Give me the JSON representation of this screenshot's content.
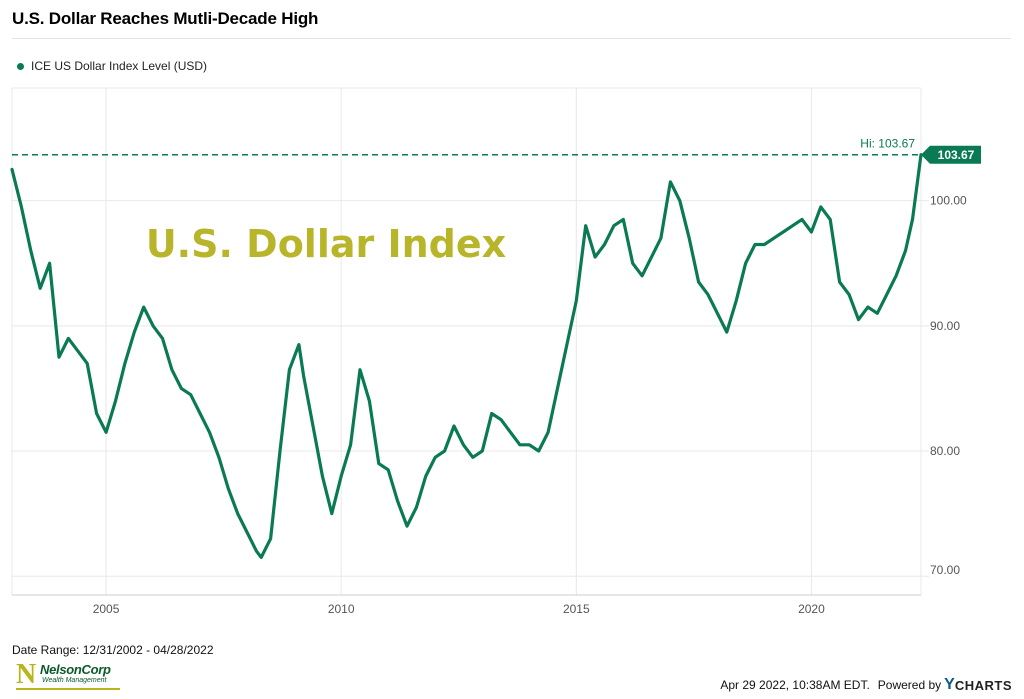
{
  "title": "U.S. Dollar Reaches Mutli-Decade High",
  "legend": {
    "label": "ICE US Dollar Index Level (USD)"
  },
  "overlay_text": "U.S. Dollar Index",
  "footer": {
    "date_range": "Date Range: 12/31/2002 - 04/28/2022",
    "timestamp": "Apr 29 2022, 10:38AM EDT.",
    "powered_by": "Powered by",
    "brand_y": "Y",
    "brand_rest": "CHARTS",
    "logo_name": "NelsonCorp",
    "logo_sub": "Wealth Management",
    "logo_mark": "N"
  },
  "colors": {
    "series": "#0a7a55",
    "overlay": "#b9b52a",
    "grid": "#e8e8e8"
  },
  "chart_data": {
    "type": "line",
    "title": "U.S. Dollar Reaches Mutli-Decade High",
    "xlabel": "",
    "ylabel": "",
    "xlim": [
      2003.0,
      2022.33
    ],
    "ylim": [
      68.5,
      109.0
    ],
    "x_ticks": [
      2005,
      2010,
      2015,
      2020
    ],
    "y_ticks": [
      70,
      80,
      90,
      100
    ],
    "y_tick_labels": [
      "70.00",
      "80.00",
      "90.00",
      "100.00"
    ],
    "grid": true,
    "legend_position": "top-left",
    "annotations": [
      {
        "type": "hline",
        "y": 103.67,
        "label": "Hi: 103.67",
        "style": "dashed"
      },
      {
        "type": "last-value-badge",
        "y": 103.67,
        "label": "103.67"
      }
    ],
    "series": [
      {
        "name": "ICE US Dollar Index Level (USD)",
        "x": [
          2003.0,
          2003.2,
          2003.4,
          2003.6,
          2003.8,
          2004.0,
          2004.2,
          2004.4,
          2004.6,
          2004.8,
          2005.0,
          2005.2,
          2005.4,
          2005.6,
          2005.8,
          2006.0,
          2006.2,
          2006.4,
          2006.6,
          2006.8,
          2007.0,
          2007.2,
          2007.4,
          2007.6,
          2007.8,
          2008.0,
          2008.2,
          2008.3,
          2008.5,
          2008.7,
          2008.9,
          2009.1,
          2009.2,
          2009.4,
          2009.6,
          2009.8,
          2010.0,
          2010.2,
          2010.4,
          2010.6,
          2010.8,
          2011.0,
          2011.2,
          2011.4,
          2011.6,
          2011.8,
          2012.0,
          2012.2,
          2012.4,
          2012.6,
          2012.8,
          2013.0,
          2013.2,
          2013.4,
          2013.6,
          2013.8,
          2014.0,
          2014.2,
          2014.4,
          2014.6,
          2014.8,
          2015.0,
          2015.2,
          2015.4,
          2015.6,
          2015.8,
          2016.0,
          2016.2,
          2016.4,
          2016.6,
          2016.8,
          2017.0,
          2017.2,
          2017.4,
          2017.6,
          2017.8,
          2018.0,
          2018.2,
          2018.4,
          2018.6,
          2018.8,
          2019.0,
          2019.2,
          2019.4,
          2019.6,
          2019.8,
          2020.0,
          2020.2,
          2020.4,
          2020.6,
          2020.8,
          2021.0,
          2021.2,
          2021.4,
          2021.6,
          2021.8,
          2022.0,
          2022.15,
          2022.33
        ],
        "values": [
          102.5,
          99.5,
          96.0,
          93.0,
          95.0,
          87.5,
          89.0,
          88.0,
          87.0,
          83.0,
          81.5,
          84.0,
          87.0,
          89.5,
          91.5,
          90.0,
          89.0,
          86.5,
          85.0,
          84.5,
          83.0,
          81.5,
          79.5,
          77.0,
          75.0,
          73.5,
          72.0,
          71.5,
          73.0,
          80.0,
          86.5,
          88.5,
          86.0,
          82.0,
          78.0,
          75.0,
          78.0,
          80.5,
          86.5,
          84.0,
          79.0,
          78.5,
          76.0,
          74.0,
          75.5,
          78.0,
          79.5,
          80.0,
          82.0,
          80.5,
          79.5,
          80.0,
          83.0,
          82.5,
          81.5,
          80.5,
          80.5,
          80.0,
          81.5,
          85.0,
          88.5,
          92.0,
          98.0,
          95.5,
          96.5,
          98.0,
          98.5,
          95.0,
          94.0,
          95.5,
          97.0,
          101.5,
          100.0,
          97.0,
          93.5,
          92.5,
          91.0,
          89.5,
          92.0,
          95.0,
          96.5,
          96.5,
          97.0,
          97.5,
          98.0,
          98.5,
          97.5,
          99.5,
          98.5,
          93.5,
          92.5,
          90.5,
          91.5,
          91.0,
          92.5,
          94.0,
          96.0,
          98.5,
          103.67
        ]
      }
    ]
  }
}
